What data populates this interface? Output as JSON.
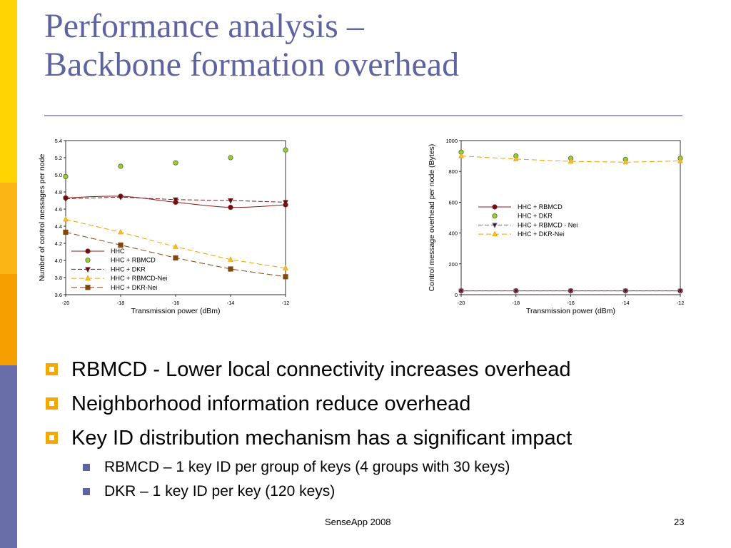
{
  "slide": {
    "title_line1": "Performance analysis –",
    "title_line2": "Backbone formation overhead",
    "footer_center": "SenseApp 2008",
    "page_number": "23",
    "colors": {
      "title": "#5f64a0",
      "side_bar": [
        "#ffd400",
        "#fbb615",
        "#f5a000",
        "#6a6ea8"
      ],
      "bullet_marker": "#f5a800",
      "sub_bullet_marker": "#5f64a0"
    }
  },
  "bullets": [
    {
      "level": 1,
      "text": "RBMCD - Lower local connectivity increases overhead"
    },
    {
      "level": 1,
      "text": "Neighborhood information reduce overhead"
    },
    {
      "level": 1,
      "text": "Key ID distribution mechanism has a significant impact"
    },
    {
      "level": 2,
      "text": "RBMCD – 1 key ID per group of keys (4 groups with 30 keys)"
    },
    {
      "level": 2,
      "text": "DKR – 1 key ID per key (120 keys)"
    }
  ],
  "chart_data": [
    {
      "type": "line",
      "xlabel": "Transmission power (dBm)",
      "ylabel": "Number of control messages per node",
      "xlim": [
        -20,
        -12
      ],
      "ylim": [
        3.6,
        5.4
      ],
      "x_ticks": [
        "-20",
        "-18",
        "-16",
        "-14",
        "-12"
      ],
      "y_ticks": [
        "3.6",
        "3.8",
        "4.0",
        "4.2",
        "4.4",
        "4.6",
        "4.8",
        "5.0",
        "5.2",
        "5.4"
      ],
      "grid": false,
      "legend": "lower-left",
      "series": [
        {
          "name": "HHC",
          "x": [
            -20,
            -18,
            -16,
            -14,
            -12
          ],
          "values": [
            4.73,
            4.75,
            4.68,
            4.62,
            4.65
          ],
          "marker": "circle",
          "color": "#8b1a1a",
          "fill": "#6b0f0f",
          "dash": "",
          "curve": true,
          "show_line": true
        },
        {
          "name": "HHC + RBMCD",
          "x": [
            -20,
            -18,
            -16,
            -14,
            -12
          ],
          "values": [
            4.98,
            5.1,
            5.14,
            5.2,
            5.29
          ],
          "marker": "circle",
          "color": "#556b2f",
          "fill": "#9acd32",
          "dash": "",
          "curve": false,
          "show_line": false
        },
        {
          "name": "HHC + DKR",
          "x": [
            -20,
            -18,
            -16,
            -14,
            -12
          ],
          "values": [
            4.72,
            4.74,
            4.71,
            4.7,
            4.68
          ],
          "marker": "triangle-down",
          "color": "#7a1f1f",
          "fill": "#5c0e0e",
          "dash": "6,3",
          "curve": false,
          "show_line": true
        },
        {
          "name": "HHC + RBMCD-Nei",
          "x": [
            -20,
            -18,
            -16,
            -14,
            -12
          ],
          "values": [
            4.48,
            4.33,
            4.16,
            4.01,
            3.91
          ],
          "marker": "triangle-up",
          "color": "#f5a000",
          "fill": "#f0c040",
          "dash": "7,4",
          "curve": false,
          "show_line": true
        },
        {
          "name": "HHC + DKR-Nei",
          "x": [
            -20,
            -18,
            -16,
            -14,
            -12
          ],
          "values": [
            4.33,
            4.18,
            4.03,
            3.9,
            3.81
          ],
          "marker": "square",
          "color": "#8b4513",
          "fill": "#7a4a10",
          "dash": "8,4",
          "curve": false,
          "show_line": true
        }
      ]
    },
    {
      "type": "line",
      "xlabel": "Transmission power (dBm)",
      "ylabel": "Control message overhead per node (Bytes)",
      "xlim": [
        -20,
        -12
      ],
      "ylim": [
        0,
        1000
      ],
      "x_ticks": [
        "-20",
        "-18",
        "-16",
        "-14",
        "-12"
      ],
      "y_ticks": [
        "0",
        "200",
        "400",
        "600",
        "800",
        "1000"
      ],
      "grid": false,
      "legend": "center-left",
      "series": [
        {
          "name": "HHC + RBMCD",
          "x": [
            -20,
            -18,
            -16,
            -14,
            -12
          ],
          "values": [
            25,
            25,
            25,
            25,
            25
          ],
          "marker": "circle",
          "color": "#8b1a1a",
          "fill": "#6b0f0f",
          "dash": "",
          "curve": false,
          "show_line": true
        },
        {
          "name": "HHC + DKR",
          "x": [
            -20,
            -18,
            -16,
            -14,
            -12
          ],
          "values": [
            925,
            900,
            885,
            878,
            885
          ],
          "marker": "circle",
          "color": "#556b2f",
          "fill": "#9acd32",
          "dash": "",
          "curve": false,
          "show_line": false
        },
        {
          "name": "HHC + RBMCD - Nei",
          "x": [
            -20,
            -18,
            -16,
            -14,
            -12
          ],
          "values": [
            25,
            25,
            25,
            25,
            25
          ],
          "marker": "triangle-down",
          "color": "#6a6ea8",
          "fill": "#5c0e0e",
          "dash": "6,3",
          "curve": false,
          "show_line": true
        },
        {
          "name": "HHC + DKR-Nei",
          "x": [
            -20,
            -18,
            -16,
            -14,
            -12
          ],
          "values": [
            900,
            880,
            865,
            860,
            868
          ],
          "marker": "triangle-up",
          "color": "#f5a000",
          "fill": "#f0c040",
          "dash": "7,4",
          "curve": false,
          "show_line": true
        }
      ]
    }
  ]
}
